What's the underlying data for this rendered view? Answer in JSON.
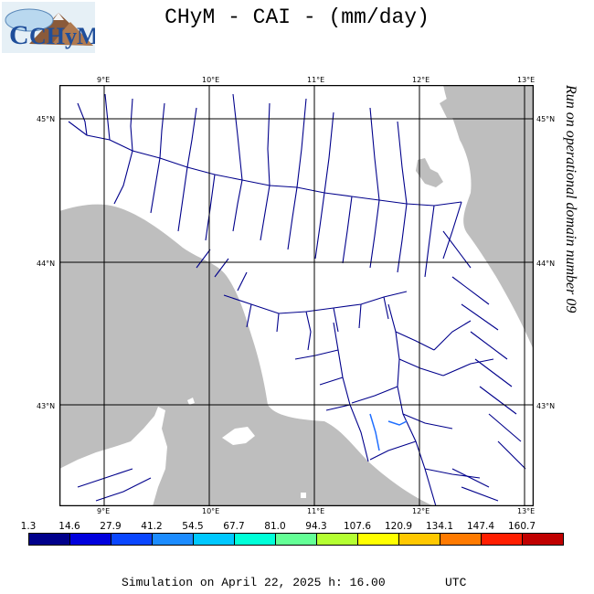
{
  "title": "CHyM - CAI - (mm/day)",
  "logo": {
    "alt": "CHyM",
    "icon": "chym-mountain-logo-icon"
  },
  "map": {
    "lon_labels": [
      "9°E",
      "10°E",
      "11°E",
      "12°E",
      "13°E"
    ],
    "lat_labels": [
      "45°N",
      "44°N",
      "43°N"
    ],
    "side_note": "Run on operational domain number 09",
    "land_color": "#ffffff",
    "sea_color": "#bebebe",
    "river_color": "#00008b",
    "highlight_river_color": "#1e6eff"
  },
  "scale": {
    "values": [
      "1.3",
      "14.6",
      "27.9",
      "41.2",
      "54.5",
      "67.7",
      "81.0",
      "94.3",
      "107.6",
      "120.9",
      "134.1",
      "147.4",
      "160.7"
    ],
    "colors": [
      "#00008b",
      "#0000dd",
      "#0a46ff",
      "#1c8cff",
      "#00c8ff",
      "#00ffd8",
      "#64ff96",
      "#b4ff32",
      "#ffff00",
      "#ffc800",
      "#ff7a00",
      "#ff1e00",
      "#c00000"
    ]
  },
  "footer": {
    "simulation": "Simulation on April 22, 2025 h: 16.00",
    "timezone": "UTC"
  }
}
